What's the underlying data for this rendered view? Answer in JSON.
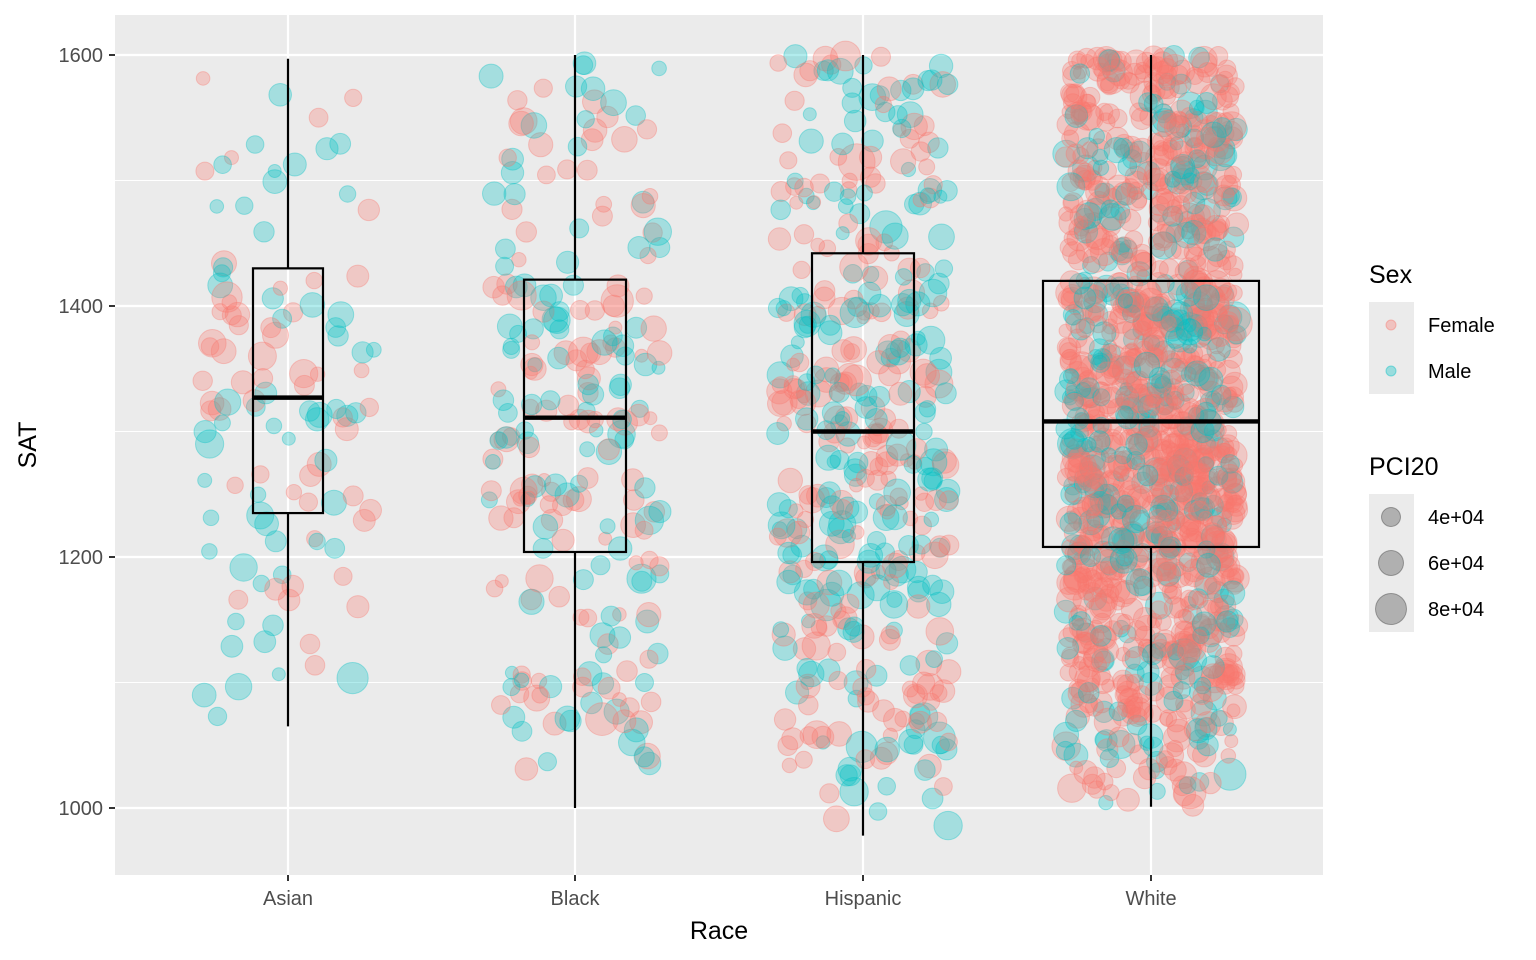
{
  "chart_data": {
    "type": "boxplot-jitter",
    "title": "",
    "xlabel": "Race",
    "ylabel": "SAT",
    "categories": [
      "Asian",
      "Black",
      "Hispanic",
      "White"
    ],
    "ylim": [
      950,
      1635
    ],
    "yticks": [
      1000,
      1200,
      1400,
      1600
    ],
    "grid": true,
    "boxes": [
      {
        "category": "Asian",
        "whisker_low": 1065,
        "q1": 1235,
        "median": 1327,
        "q3": 1430,
        "whisker_high": 1597
      },
      {
        "category": "Black",
        "whisker_low": 1000,
        "q1": 1204,
        "median": 1311,
        "q3": 1421,
        "whisker_high": 1600
      },
      {
        "category": "Hispanic",
        "whisker_low": 978,
        "q1": 1196,
        "median": 1300,
        "q3": 1442,
        "whisker_high": 1600
      },
      {
        "category": "White",
        "whisker_low": 1001,
        "q1": 1208,
        "median": 1308,
        "q3": 1420,
        "whisker_high": 1600
      }
    ],
    "point_counts": [
      {
        "category": "Asian",
        "female": 55,
        "male": 60
      },
      {
        "category": "Black",
        "female": 130,
        "male": 110
      },
      {
        "category": "Hispanic",
        "female": 230,
        "male": 210
      },
      {
        "category": "White",
        "female": 1100,
        "male": 380
      }
    ],
    "colors": {
      "Female": "#f8766d",
      "Male": "#00bfc4"
    },
    "legend": {
      "placement": "right",
      "color_title": "Sex",
      "color_entries": [
        "Female",
        "Male"
      ],
      "size_title": "PCI20",
      "size_entries": [
        "4e+04",
        "6e+04",
        "8e+04"
      ],
      "size_values": [
        40000,
        60000,
        80000
      ]
    },
    "size_range": [
      20000,
      100000
    ]
  }
}
